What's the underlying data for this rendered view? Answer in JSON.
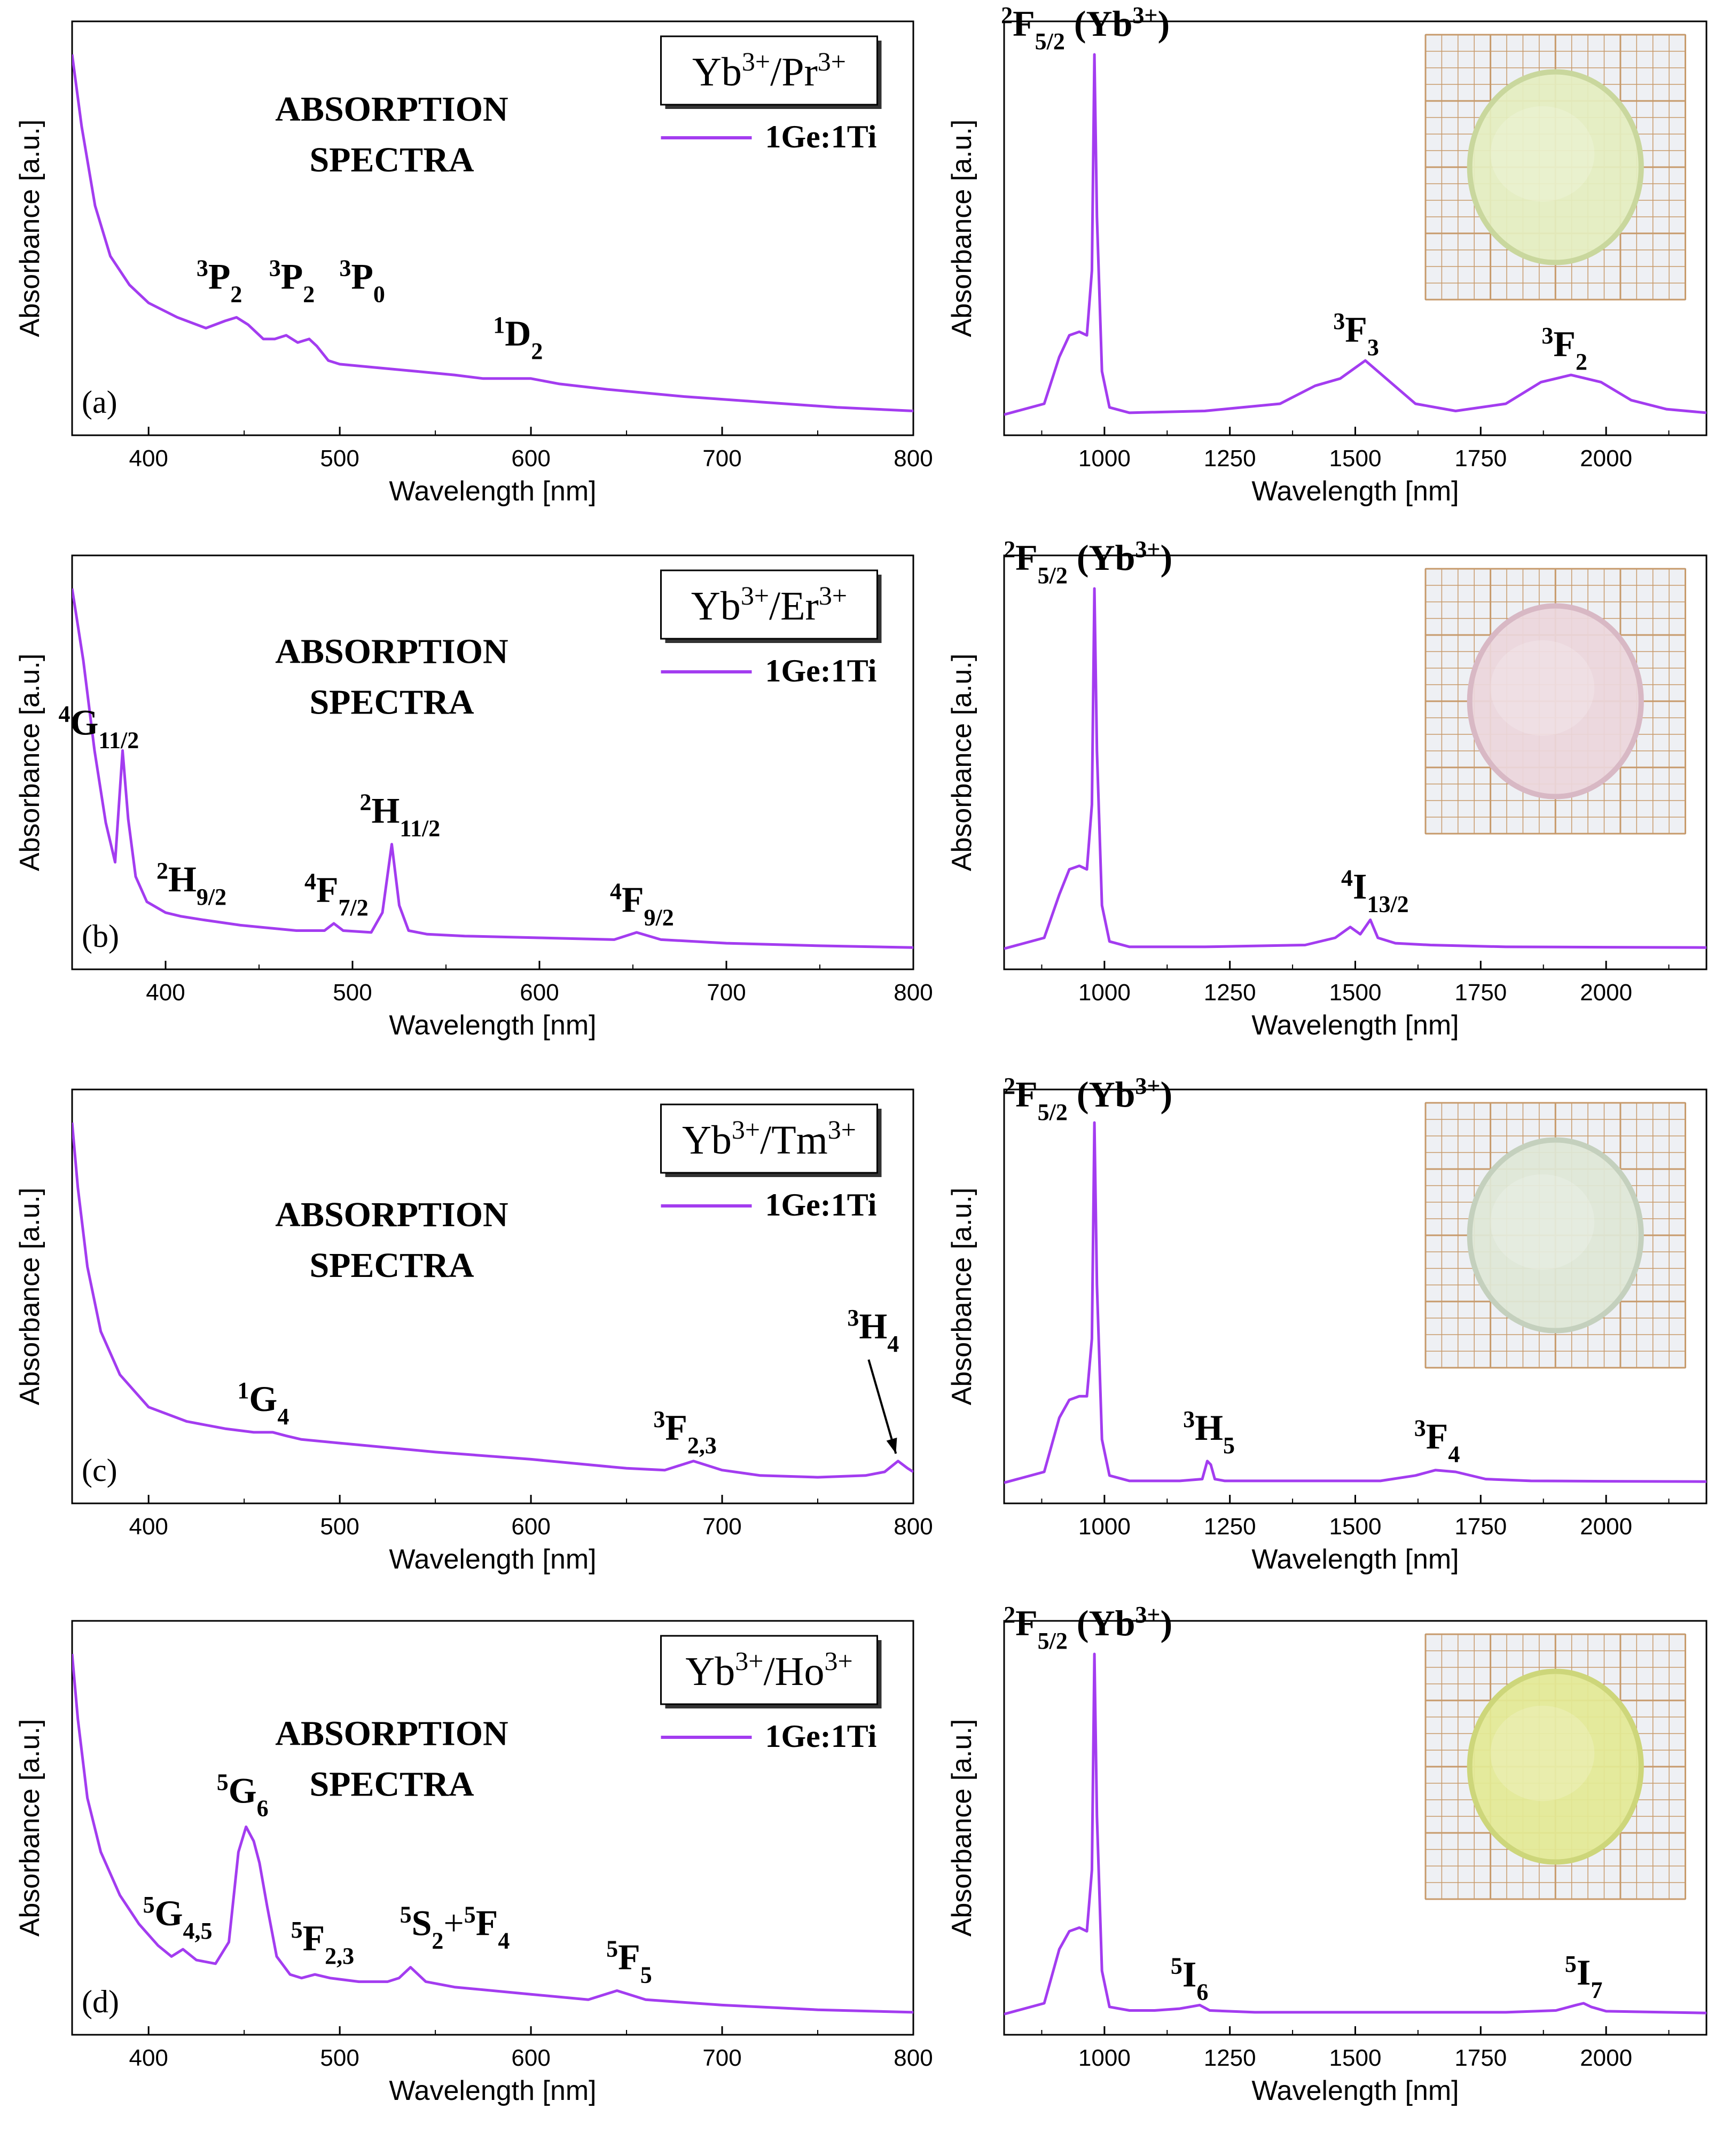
{
  "figure": {
    "axis_x_label": "Wavelength [nm]",
    "axis_y_label": "Absorbance [a.u.]",
    "legend_label": "1Ge:1Ti",
    "title_line1": "ABSORPTION",
    "title_line2": "SPECTRA",
    "line_color": "#a33cf0"
  },
  "chart_data": [
    {
      "id": "a-left",
      "panel": "(a)",
      "type": "line",
      "ion_pair": {
        "a": "Yb",
        "a_sup": "3+",
        "b": "Pr",
        "b_sup": "3+"
      },
      "xlabel": "Wavelength [nm]",
      "ylabel": "Absorbance [a.u.]",
      "xlim": [
        360,
        800
      ],
      "ylim": [
        0,
        1
      ],
      "xticks": [
        400,
        500,
        600,
        700,
        800
      ],
      "series": [
        {
          "name": "1Ge:1Ti",
          "x": [
            360,
            365,
            372,
            380,
            390,
            400,
            415,
            430,
            440,
            446,
            452,
            460,
            466,
            472,
            478,
            484,
            488,
            494,
            500,
            520,
            540,
            560,
            575,
            588,
            600,
            615,
            640,
            680,
            720,
            760,
            800
          ],
          "y": [
            1.0,
            0.8,
            0.58,
            0.44,
            0.36,
            0.31,
            0.27,
            0.24,
            0.26,
            0.27,
            0.25,
            0.21,
            0.21,
            0.22,
            0.2,
            0.21,
            0.19,
            0.15,
            0.14,
            0.13,
            0.12,
            0.11,
            0.1,
            0.1,
            0.1,
            0.085,
            0.07,
            0.05,
            0.035,
            0.02,
            0.01
          ]
        }
      ],
      "annotations": [
        {
          "id": "a1",
          "sup": "3",
          "base": "P",
          "sub": "2",
          "x": 446,
          "y": 0.29
        },
        {
          "id": "a2",
          "sup": "3",
          "base": "P",
          "sub": "2",
          "x": 470,
          "y": 0.29
        },
        {
          "id": "a3",
          "sup": "3",
          "base": "P",
          "sub": "0",
          "x": 490,
          "y": 0.29
        },
        {
          "id": "a4",
          "sup": "1",
          "base": "D",
          "sub": "2",
          "x": 590,
          "y": 0.14
        }
      ]
    },
    {
      "id": "a-right",
      "type": "line",
      "xlabel": "Wavelength [nm]",
      "ylabel": "Absorbance [a.u.]",
      "xlim": [
        800,
        2200
      ],
      "ylim": [
        0,
        1
      ],
      "xticks": [
        1000,
        1250,
        1500,
        1750,
        2000
      ],
      "series": [
        {
          "name": "1Ge:1Ti",
          "x": [
            800,
            880,
            910,
            930,
            950,
            965,
            975,
            980,
            985,
            995,
            1010,
            1050,
            1200,
            1350,
            1420,
            1470,
            1520,
            1570,
            1620,
            1700,
            1800,
            1870,
            1930,
            1990,
            2050,
            2120,
            2200
          ],
          "y": [
            0.0,
            0.03,
            0.16,
            0.22,
            0.23,
            0.22,
            0.4,
            1.0,
            0.55,
            0.12,
            0.02,
            0.005,
            0.01,
            0.03,
            0.08,
            0.1,
            0.15,
            0.09,
            0.03,
            0.01,
            0.03,
            0.09,
            0.11,
            0.09,
            0.04,
            0.015,
            0.005
          ]
        }
      ],
      "annotations": [
        {
          "id": "ar1",
          "sup": "2",
          "base": "F",
          "sub": "5/2",
          "tail": "(Yb",
          "tail_sup": "3+",
          "tail_end": ")",
          "x": 980,
          "y": 1.0
        },
        {
          "id": "ar2",
          "sup": "3",
          "base": "F",
          "sub": "3",
          "x": 1520,
          "y": 0.15
        },
        {
          "id": "ar3",
          "sup": "3",
          "base": "F",
          "sub": "2",
          "x": 1930,
          "y": 0.11
        }
      ]
    },
    {
      "id": "b-left",
      "panel": "(b)",
      "type": "line",
      "ion_pair": {
        "a": "Yb",
        "a_sup": "3+",
        "b": "Er",
        "b_sup": "3+"
      },
      "xlabel": "Wavelength [nm]",
      "ylabel": "Absorbance [a.u.]",
      "xlim": [
        350,
        800
      ],
      "ylim": [
        0,
        1
      ],
      "xticks": [
        400,
        500,
        600,
        700,
        800
      ],
      "series": [
        {
          "name": "1Ge:1Ti",
          "x": [
            350,
            356,
            362,
            368,
            373,
            377,
            380,
            384,
            390,
            400,
            408,
            420,
            440,
            470,
            485,
            490,
            495,
            510,
            516,
            521,
            525,
            530,
            540,
            560,
            600,
            640,
            652,
            665,
            700,
            750,
            800
          ],
          "y": [
            1.0,
            0.8,
            0.55,
            0.35,
            0.24,
            0.55,
            0.36,
            0.2,
            0.13,
            0.1,
            0.09,
            0.08,
            0.065,
            0.05,
            0.05,
            0.07,
            0.05,
            0.045,
            0.1,
            0.29,
            0.12,
            0.05,
            0.04,
            0.035,
            0.03,
            0.025,
            0.045,
            0.025,
            0.015,
            0.008,
            0.003
          ]
        }
      ],
      "annotations": [
        {
          "id": "b1",
          "sup": "4",
          "base": "G",
          "sub": "11/2",
          "x": 377,
          "y": 0.55
        },
        {
          "id": "b2",
          "sup": "2",
          "base": "H",
          "sub": "9/2",
          "x": 408,
          "y": 0.1
        },
        {
          "id": "b3",
          "sup": "4",
          "base": "F",
          "sub": "7/2",
          "x": 490,
          "y": 0.07
        },
        {
          "id": "b4",
          "sup": "2",
          "base": "H",
          "sub": "11/2",
          "x": 521,
          "y": 0.29
        },
        {
          "id": "b5",
          "sup": "4",
          "base": "F",
          "sub": "9/2",
          "x": 652,
          "y": 0.05
        }
      ]
    },
    {
      "id": "b-right",
      "type": "line",
      "xlabel": "Wavelength [nm]",
      "ylabel": "Absorbance [a.u.]",
      "xlim": [
        800,
        2200
      ],
      "ylim": [
        0,
        1
      ],
      "xticks": [
        1000,
        1250,
        1500,
        1750,
        2000
      ],
      "series": [
        {
          "name": "1Ge:1Ti",
          "x": [
            800,
            880,
            910,
            930,
            950,
            965,
            975,
            980,
            985,
            995,
            1010,
            1050,
            1200,
            1400,
            1460,
            1490,
            1510,
            1520,
            1530,
            1545,
            1580,
            1650,
            1800,
            2000,
            2200
          ],
          "y": [
            0.0,
            0.03,
            0.15,
            0.22,
            0.23,
            0.22,
            0.4,
            1.0,
            0.55,
            0.12,
            0.02,
            0.005,
            0.005,
            0.01,
            0.03,
            0.06,
            0.04,
            0.06,
            0.08,
            0.03,
            0.015,
            0.01,
            0.005,
            0.004,
            0.003
          ]
        }
      ],
      "annotations": [
        {
          "id": "br1",
          "sup": "2",
          "base": "F",
          "sub": "5/2",
          "tail": "(Yb",
          "tail_sup": "3+",
          "tail_end": ")",
          "x": 980,
          "y": 1.0
        },
        {
          "id": "br2",
          "sup": "4",
          "base": "I",
          "sub": "13/2",
          "x": 1525,
          "y": 0.08
        }
      ]
    },
    {
      "id": "c-left",
      "panel": "(c)",
      "type": "line",
      "ion_pair": {
        "a": "Yb",
        "a_sup": "3+",
        "b": "Tm",
        "b_sup": "3+"
      },
      "xlabel": "Wavelength [nm]",
      "ylabel": "Absorbance [a.u.]",
      "xlim": [
        360,
        800
      ],
      "ylim": [
        0,
        1
      ],
      "xticks": [
        400,
        500,
        600,
        700,
        800
      ],
      "series": [
        {
          "name": "1Ge:1Ti",
          "x": [
            360,
            363,
            368,
            375,
            385,
            400,
            420,
            440,
            455,
            465,
            472,
            480,
            500,
            550,
            600,
            650,
            670,
            685,
            700,
            720,
            750,
            775,
            785,
            792,
            797,
            800
          ],
          "y": [
            1.0,
            0.82,
            0.6,
            0.42,
            0.3,
            0.21,
            0.17,
            0.15,
            0.14,
            0.14,
            0.13,
            0.12,
            0.11,
            0.085,
            0.065,
            0.04,
            0.035,
            0.06,
            0.035,
            0.02,
            0.015,
            0.02,
            0.03,
            0.06,
            0.04,
            0.03
          ]
        }
      ],
      "annotations": [
        {
          "id": "c1",
          "sup": "1",
          "base": "G",
          "sub": "4",
          "x": 466,
          "y": 0.14
        },
        {
          "id": "c2",
          "sup": "3",
          "base": "F",
          "sub": "2,3",
          "x": 685,
          "y": 0.06
        },
        {
          "id": "c3",
          "sup": "3",
          "base": "H",
          "sub": "4",
          "x": 792,
          "y": 0.06
        }
      ]
    },
    {
      "id": "c-right",
      "type": "line",
      "xlabel": "Wavelength [nm]",
      "ylabel": "Absorbance [a.u.]",
      "xlim": [
        800,
        2200
      ],
      "ylim": [
        0,
        1
      ],
      "xticks": [
        1000,
        1250,
        1500,
        1750,
        2000
      ],
      "series": [
        {
          "name": "1Ge:1Ti",
          "x": [
            800,
            880,
            910,
            930,
            950,
            965,
            975,
            980,
            985,
            995,
            1010,
            1050,
            1150,
            1195,
            1205,
            1212,
            1220,
            1240,
            1400,
            1550,
            1620,
            1660,
            1700,
            1760,
            1850,
            2000,
            2200
          ],
          "y": [
            0.0,
            0.03,
            0.18,
            0.23,
            0.24,
            0.24,
            0.4,
            1.0,
            0.55,
            0.12,
            0.02,
            0.005,
            0.005,
            0.01,
            0.06,
            0.05,
            0.01,
            0.005,
            0.005,
            0.005,
            0.02,
            0.035,
            0.03,
            0.01,
            0.005,
            0.004,
            0.003
          ]
        }
      ],
      "annotations": [
        {
          "id": "cr1",
          "sup": "2",
          "base": "F",
          "sub": "5/2",
          "tail": "(Yb",
          "tail_sup": "3+",
          "tail_end": ")",
          "x": 980,
          "y": 1.0
        },
        {
          "id": "cr2",
          "sup": "3",
          "base": "H",
          "sub": "5",
          "x": 1210,
          "y": 0.06
        },
        {
          "id": "cr3",
          "sup": "3",
          "base": "F",
          "sub": "4",
          "x": 1660,
          "y": 0.035
        }
      ]
    },
    {
      "id": "d-left",
      "panel": "(d)",
      "type": "line",
      "ion_pair": {
        "a": "Yb",
        "a_sup": "3+",
        "b": "Ho",
        "b_sup": "3+"
      },
      "xlabel": "Wavelength [nm]",
      "ylabel": "Absorbance [a.u.]",
      "xlim": [
        360,
        800
      ],
      "ylim": [
        0,
        1
      ],
      "xticks": [
        400,
        500,
        600,
        700,
        800
      ],
      "series": [
        {
          "name": "1Ge:1Ti",
          "x": [
            360,
            363,
            368,
            375,
            385,
            395,
            405,
            412,
            418,
            425,
            435,
            442,
            447,
            451,
            455,
            458,
            462,
            467,
            474,
            480,
            487,
            495,
            510,
            525,
            531,
            537,
            545,
            560,
            600,
            630,
            645,
            660,
            700,
            750,
            800
          ],
          "y": [
            1.0,
            0.82,
            0.6,
            0.45,
            0.33,
            0.25,
            0.19,
            0.16,
            0.18,
            0.15,
            0.14,
            0.2,
            0.45,
            0.52,
            0.48,
            0.42,
            0.3,
            0.16,
            0.11,
            0.1,
            0.11,
            0.1,
            0.09,
            0.09,
            0.1,
            0.13,
            0.09,
            0.075,
            0.055,
            0.04,
            0.065,
            0.04,
            0.025,
            0.012,
            0.005
          ]
        }
      ],
      "annotations": [
        {
          "id": "d1",
          "sup": "5",
          "base": "G",
          "sub": "4,5",
          "x": 418,
          "y": 0.18
        },
        {
          "id": "d2",
          "sup": "5",
          "base": "G",
          "sub": "6",
          "x": 451,
          "y": 0.52
        },
        {
          "id": "d3",
          "sup": "5",
          "base": "F",
          "sub": "2,3",
          "x": 487,
          "y": 0.11
        },
        {
          "id": "d4",
          "sup": "5",
          "base": "S",
          "sub": "2",
          "plus": "+",
          "sup2": "5",
          "base2": "F",
          "sub2": "4",
          "x": 537,
          "y": 0.13
        },
        {
          "id": "d5",
          "sup": "5",
          "base": "F",
          "sub": "5",
          "x": 645,
          "y": 0.065
        }
      ]
    },
    {
      "id": "d-right",
      "type": "line",
      "xlabel": "Wavelength [nm]",
      "ylabel": "Absorbance [a.u.]",
      "xlim": [
        800,
        2200
      ],
      "ylim": [
        0,
        1
      ],
      "xticks": [
        1000,
        1250,
        1500,
        1750,
        2000
      ],
      "series": [
        {
          "name": "1Ge:1Ti",
          "x": [
            800,
            880,
            910,
            930,
            950,
            965,
            975,
            980,
            985,
            995,
            1010,
            1050,
            1100,
            1150,
            1170,
            1190,
            1210,
            1300,
            1500,
            1800,
            1900,
            1940,
            1955,
            1970,
            2000,
            2200
          ],
          "y": [
            0.0,
            0.03,
            0.18,
            0.23,
            0.24,
            0.23,
            0.4,
            1.0,
            0.55,
            0.12,
            0.02,
            0.01,
            0.01,
            0.015,
            0.02,
            0.025,
            0.01,
            0.005,
            0.005,
            0.005,
            0.01,
            0.025,
            0.03,
            0.02,
            0.008,
            0.003
          ]
        }
      ],
      "annotations": [
        {
          "id": "dr1",
          "sup": "2",
          "base": "F",
          "sub": "5/2",
          "tail": "(Yb",
          "tail_sup": "3+",
          "tail_end": ")",
          "x": 980,
          "y": 1.0
        },
        {
          "id": "dr2",
          "sup": "5",
          "base": "I",
          "sub": "6",
          "x": 1180,
          "y": 0.025
        },
        {
          "id": "dr3",
          "sup": "5",
          "base": "I",
          "sub": "7",
          "x": 1955,
          "y": 0.03
        }
      ]
    }
  ]
}
